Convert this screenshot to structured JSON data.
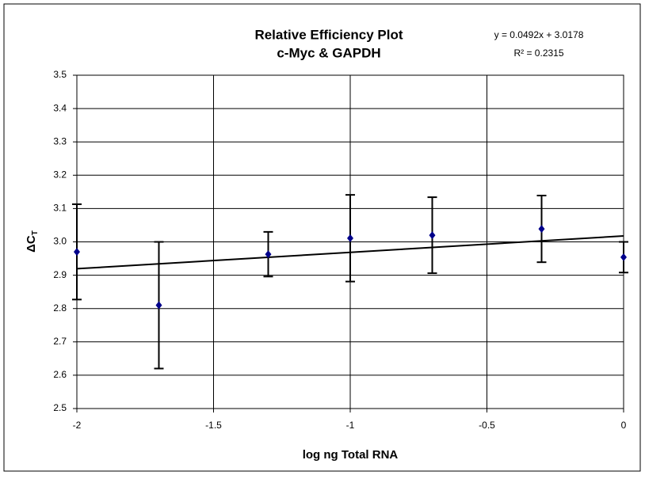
{
  "chart_data": {
    "type": "scatter",
    "title": "Relative Efficiency Plot",
    "subtitle": "c-Myc & GAPDH",
    "x_label": "log ng Total RNA",
    "y_label": "ΔC",
    "y_label_sub": "T",
    "x": [
      -2,
      -1.7,
      -1.3,
      -1,
      -0.7,
      -0.3,
      0
    ],
    "series": [
      {
        "color": "#00008b",
        "values": [
          2.97,
          2.81,
          2.963,
          3.011,
          3.02,
          3.039,
          2.954
        ],
        "errors": [
          0.143,
          0.19,
          0.067,
          0.13,
          0.114,
          0.1,
          0.046
        ]
      }
    ],
    "trendline": {
      "slope": 0.0492,
      "intercept": 3.0178,
      "label": "y = 0.0492x + 3.0178",
      "r2_label": "R² = 0.2315",
      "color": "#000000"
    },
    "xlim": [
      -2,
      0
    ],
    "ylim": [
      2.5,
      3.5
    ],
    "xticks": [
      -2,
      -1.5,
      -1,
      -0.5,
      0
    ],
    "yticks": [
      2.5,
      2.6,
      2.7,
      2.8,
      2.9,
      {
        "value": 3,
        "label": "3.0"
      },
      3.1,
      3.2,
      3.3,
      3.4,
      3.5
    ],
    "grid": true
  }
}
